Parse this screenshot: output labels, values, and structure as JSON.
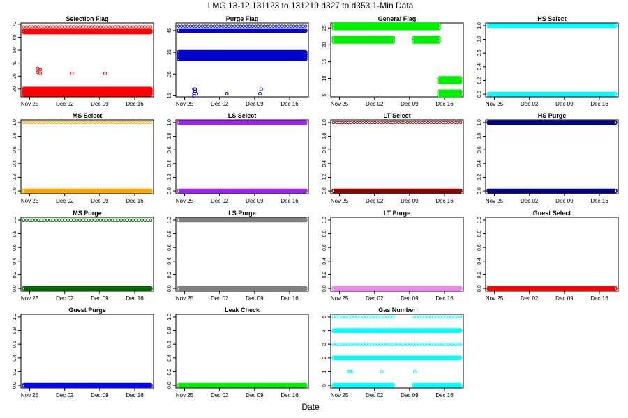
{
  "figure": {
    "title": "LMG   13-12     131123 to 131219     d327 to d353    1-Min Data",
    "xlabel": "Date"
  },
  "chart_data": [
    {
      "type": "scatter",
      "title": "Selection Flag",
      "color": "#ff0000",
      "ylim": [
        14,
        71
      ],
      "yticks": [
        20,
        30,
        40,
        50,
        60,
        70
      ],
      "xticks": [
        "Nov 25",
        "Dec 02",
        "Dec 09",
        "Dec 16"
      ],
      "bands": [
        {
          "y": 64,
          "from": 0,
          "to": 1
        },
        {
          "y": 65,
          "from": 0,
          "to": 1
        },
        {
          "y": 68,
          "from": 0,
          "to": 1,
          "sparse": true
        },
        {
          "y": 20,
          "from": 0,
          "to": 1
        },
        {
          "y": 19,
          "from": 0,
          "to": 1
        },
        {
          "y": 18,
          "from": 0,
          "to": 1
        },
        {
          "y": 17,
          "from": 0,
          "to": 1
        },
        {
          "y": 16,
          "from": 0,
          "to": 1
        }
      ],
      "points": [
        [
          0.11,
          36
        ],
        [
          0.12,
          34
        ],
        [
          0.13,
          32
        ],
        [
          0.11,
          33
        ],
        [
          0.13,
          35
        ],
        [
          0.38,
          32
        ],
        [
          0.64,
          32
        ]
      ]
    },
    {
      "type": "scatter",
      "title": "Purge Flag",
      "color": "#0000cc",
      "ylim": [
        14.5,
        48.5
      ],
      "yticks": [
        15,
        25,
        35,
        45
      ],
      "xticks": [
        "Nov 25",
        "Dec 02",
        "Dec 09",
        "Dec 16"
      ],
      "bands": [
        {
          "y": 47,
          "from": 0,
          "to": 1,
          "sparse": true
        },
        {
          "y": 45,
          "from": 0,
          "to": 1
        },
        {
          "y": 35,
          "from": 0,
          "to": 1
        },
        {
          "y": 34,
          "from": 0,
          "to": 1
        },
        {
          "y": 33,
          "from": 0,
          "to": 1
        },
        {
          "y": 32,
          "from": 0,
          "to": 1
        }
      ],
      "points": [
        [
          0.12,
          18
        ],
        [
          0.13,
          17
        ],
        [
          0.12,
          16
        ],
        [
          0.14,
          16
        ],
        [
          0.13,
          18
        ],
        [
          0.12,
          15
        ],
        [
          0.38,
          16
        ],
        [
          0.64,
          16
        ],
        [
          0.65,
          18
        ]
      ]
    },
    {
      "type": "scatter",
      "title": "General Flag",
      "color": "#00ee00",
      "ylim": [
        4.5,
        26.5
      ],
      "yticks": [
        5,
        10,
        15,
        20,
        25
      ],
      "xticks": [
        "Nov 25",
        "Dec 02",
        "Dec 09",
        "Dec 16"
      ],
      "bands": [
        {
          "y": 26,
          "from": 0,
          "to": 0.83
        },
        {
          "y": 25,
          "from": 0,
          "to": 0.83
        },
        {
          "y": 22,
          "from": 0,
          "to": 0.47
        },
        {
          "y": 21,
          "from": 0,
          "to": 0.47
        },
        {
          "y": 22,
          "from": 0.63,
          "to": 0.83
        },
        {
          "y": 21,
          "from": 0.63,
          "to": 0.83
        },
        {
          "y": 10,
          "from": 0.83,
          "to": 1
        },
        {
          "y": 9,
          "from": 0.83,
          "to": 1
        },
        {
          "y": 6,
          "from": 0.83,
          "to": 1
        },
        {
          "y": 5,
          "from": 0.83,
          "to": 1
        }
      ],
      "points": []
    },
    {
      "type": "scatter",
      "title": "HS Select",
      "color": "#00ffff",
      "ylim": [
        -0.04,
        1.04
      ],
      "yticks": [
        0.0,
        0.2,
        0.4,
        0.6,
        0.8,
        1.0
      ],
      "xticks": [
        "Nov 25",
        "Dec 02",
        "Dec 09",
        "Dec 16"
      ],
      "bands": [
        {
          "y": 1,
          "from": 0,
          "to": 1
        },
        {
          "y": 0,
          "from": 0,
          "to": 1
        }
      ],
      "points": []
    },
    {
      "type": "scatter",
      "title": "MS Select",
      "color": "#ffa500",
      "ylim": [
        -0.04,
        1.04
      ],
      "yticks": [
        0.0,
        0.2,
        0.4,
        0.6,
        0.8,
        1.0
      ],
      "xticks": [
        "Nov 25",
        "Dec 02",
        "Dec 09",
        "Dec 16"
      ],
      "bands": [
        {
          "y": 1,
          "from": 0,
          "to": 1,
          "sparse": true
        },
        {
          "y": 0,
          "from": 0,
          "to": 1
        }
      ],
      "points": []
    },
    {
      "type": "scatter",
      "title": "LS Select",
      "color": "#a020f0",
      "ylim": [
        -0.04,
        1.04
      ],
      "yticks": [
        0.0,
        0.2,
        0.4,
        0.6,
        0.8,
        1.0
      ],
      "xticks": [
        "Nov 25",
        "Dec 02",
        "Dec 09",
        "Dec 16"
      ],
      "bands": [
        {
          "y": 1,
          "from": 0,
          "to": 1
        },
        {
          "y": 0,
          "from": 0,
          "to": 1
        }
      ],
      "points": []
    },
    {
      "type": "scatter",
      "title": "LT Select",
      "color": "#8b0000",
      "ylim": [
        -0.04,
        1.04
      ],
      "yticks": [
        0.0,
        0.2,
        0.4,
        0.6,
        0.8,
        1.0
      ],
      "xticks": [
        "Nov 25",
        "Dec 02",
        "Dec 09",
        "Dec 16"
      ],
      "bands": [
        {
          "y": 1,
          "from": 0,
          "to": 1,
          "sparse": true
        },
        {
          "y": 0,
          "from": 0,
          "to": 1
        }
      ],
      "points": []
    },
    {
      "type": "scatter",
      "title": "HS Purge",
      "color": "#000080",
      "ylim": [
        -0.04,
        1.04
      ],
      "yticks": [
        0.0,
        0.2,
        0.4,
        0.6,
        0.8,
        1.0
      ],
      "xticks": [
        "Nov 25",
        "Dec 02",
        "Dec 09",
        "Dec 16"
      ],
      "bands": [
        {
          "y": 1,
          "from": 0,
          "to": 1
        },
        {
          "y": 0,
          "from": 0,
          "to": 1
        }
      ],
      "points": []
    },
    {
      "type": "scatter",
      "title": "MS Purge",
      "color": "#006400",
      "ylim": [
        -0.04,
        1.04
      ],
      "yticks": [
        0.0,
        0.2,
        0.4,
        0.6,
        0.8,
        1.0
      ],
      "xticks": [
        "Nov 25",
        "Dec 02",
        "Dec 09",
        "Dec 16"
      ],
      "bands": [
        {
          "y": 1,
          "from": 0,
          "to": 1,
          "sparse": true
        },
        {
          "y": 0,
          "from": 0,
          "to": 1
        }
      ],
      "points": []
    },
    {
      "type": "scatter",
      "title": "LS Purge",
      "color": "#808080",
      "ylim": [
        -0.04,
        1.04
      ],
      "yticks": [
        0.0,
        0.2,
        0.4,
        0.6,
        0.8,
        1.0
      ],
      "xticks": [
        "Nov 25",
        "Dec 02",
        "Dec 09",
        "Dec 16"
      ],
      "bands": [
        {
          "y": 1,
          "from": 0,
          "to": 1
        },
        {
          "y": 0,
          "from": 0,
          "to": 1
        }
      ],
      "points": []
    },
    {
      "type": "scatter",
      "title": "LT Purge",
      "color": "#ee82ee",
      "ylim": [
        -0.04,
        1.04
      ],
      "yticks": [
        0.0,
        0.2,
        0.4,
        0.6,
        0.8,
        1.0
      ],
      "xticks": [
        "Nov 25",
        "Dec 02",
        "Dec 09",
        "Dec 16"
      ],
      "bands": [
        {
          "y": 0,
          "from": 0,
          "to": 1
        }
      ],
      "points": []
    },
    {
      "type": "scatter",
      "title": "Guest Select",
      "color": "#ff0000",
      "ylim": [
        -0.04,
        1.04
      ],
      "yticks": [
        0.0,
        0.2,
        0.4,
        0.6,
        0.8,
        1.0
      ],
      "xticks": [
        "Nov 25",
        "Dec 02",
        "Dec 09",
        "Dec 16"
      ],
      "bands": [
        {
          "y": 0,
          "from": 0,
          "to": 1
        }
      ],
      "points": []
    },
    {
      "type": "scatter",
      "title": "Guest Purge",
      "color": "#0000ff",
      "ylim": [
        -0.04,
        1.04
      ],
      "yticks": [
        0.0,
        0.2,
        0.4,
        0.6,
        0.8,
        1.0
      ],
      "xticks": [
        "Nov 25",
        "Dec 02",
        "Dec 09",
        "Dec 16"
      ],
      "bands": [
        {
          "y": 0,
          "from": 0,
          "to": 1
        }
      ],
      "points": []
    },
    {
      "type": "scatter",
      "title": "Leak Check",
      "color": "#00ee00",
      "ylim": [
        -0.04,
        1.04
      ],
      "yticks": [
        0.0,
        0.2,
        0.4,
        0.6,
        0.8,
        1.0
      ],
      "xticks": [
        "Nov 25",
        "Dec 02",
        "Dec 09",
        "Dec 16"
      ],
      "bands": [
        {
          "y": 0,
          "from": 0,
          "to": 1
        }
      ],
      "points": []
    },
    {
      "type": "scatter",
      "title": "Gas Number",
      "color": "#00ffff",
      "ylim": [
        -0.2,
        5.2
      ],
      "yticks": [
        0,
        1,
        2,
        3,
        4,
        5
      ],
      "xticks": [
        "Nov 25",
        "Dec 02",
        "Dec 09",
        "Dec 16"
      ],
      "bands": [
        {
          "y": 5,
          "from": 0,
          "to": 0.47,
          "sparse": true
        },
        {
          "y": 5,
          "from": 0.63,
          "to": 1,
          "sparse": true
        },
        {
          "y": 4,
          "from": 0,
          "to": 1
        },
        {
          "y": 3,
          "from": 0,
          "to": 1,
          "sparse": true
        },
        {
          "y": 2,
          "from": 0,
          "to": 1
        },
        {
          "y": 0,
          "from": 0,
          "to": 0.47
        },
        {
          "y": 0,
          "from": 0.63,
          "to": 1
        }
      ],
      "points": [
        [
          0.12,
          1
        ],
        [
          0.13,
          1
        ],
        [
          0.14,
          1
        ],
        [
          0.38,
          1
        ],
        [
          0.64,
          1
        ]
      ]
    }
  ]
}
